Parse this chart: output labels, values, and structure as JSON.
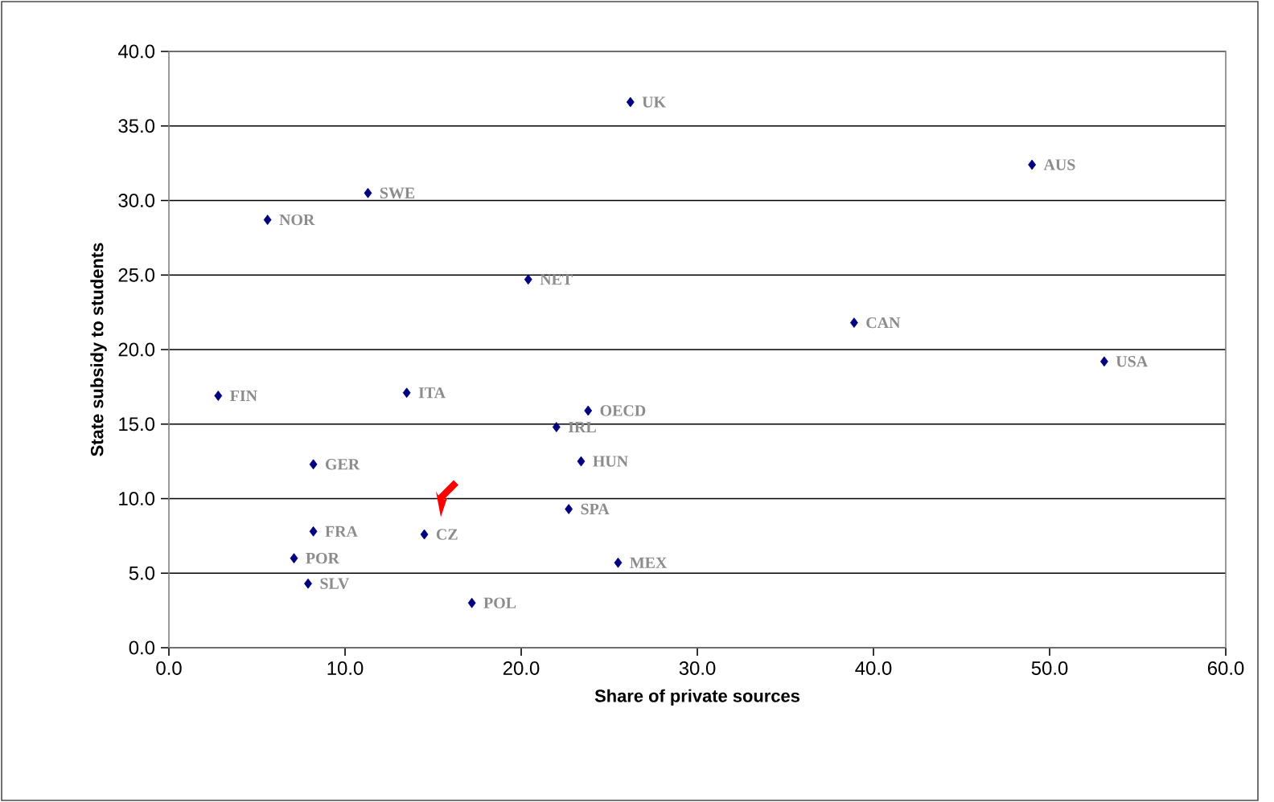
{
  "chart_data": {
    "type": "scatter",
    "xlabel": "Share of private sources",
    "ylabel": "State subsidy to students",
    "x": [
      26.2,
      49.0,
      11.3,
      5.6,
      20.4,
      38.9,
      53.1,
      2.8,
      13.5,
      23.8,
      22.0,
      23.4,
      8.2,
      22.7,
      8.2,
      14.5,
      7.1,
      25.5,
      7.9,
      17.2
    ],
    "values": [
      36.6,
      32.4,
      30.5,
      28.7,
      24.7,
      21.8,
      19.2,
      16.9,
      17.1,
      15.9,
      14.8,
      12.5,
      12.3,
      9.3,
      7.8,
      7.6,
      6.0,
      5.7,
      4.3,
      3.0
    ],
    "color": "#000080",
    "marker": "diamond",
    "grid": "y",
    "xlim": [
      0,
      60
    ],
    "ylim": [
      0,
      40
    ],
    "xticks": [
      {
        "value": 0,
        "label": "0.0"
      },
      {
        "value": 10,
        "label": "10.0"
      },
      {
        "value": 20,
        "label": "20.0"
      },
      {
        "value": 30,
        "label": "30.0"
      },
      {
        "value": 40,
        "label": "40.0"
      },
      {
        "value": 50,
        "label": "50.0"
      },
      {
        "value": 60,
        "label": "60.0"
      }
    ],
    "yticks": [
      {
        "value": 0,
        "label": "0.0"
      },
      {
        "value": 5,
        "label": "5.0"
      },
      {
        "value": 10,
        "label": "10.0"
      },
      {
        "value": 15,
        "label": "15.0"
      },
      {
        "value": 20,
        "label": "20.0"
      },
      {
        "value": 25,
        "label": "25.0"
      },
      {
        "value": 30,
        "label": "30.0"
      },
      {
        "value": 35,
        "label": "35.0"
      },
      {
        "value": 40,
        "label": "40.0"
      }
    ],
    "annotations": [
      {
        "text": "UK",
        "x": 26.2,
        "y": 36.6
      },
      {
        "text": "AUS",
        "x": 49.0,
        "y": 32.4
      },
      {
        "text": "SWE",
        "x": 11.3,
        "y": 30.5
      },
      {
        "text": "NOR",
        "x": 5.6,
        "y": 28.7
      },
      {
        "text": "NET",
        "x": 20.4,
        "y": 24.7
      },
      {
        "text": "CAN",
        "x": 38.9,
        "y": 21.8
      },
      {
        "text": "USA",
        "x": 53.1,
        "y": 19.2
      },
      {
        "text": "FIN",
        "x": 2.8,
        "y": 16.9
      },
      {
        "text": "ITA",
        "x": 13.5,
        "y": 17.1
      },
      {
        "text": "OECD",
        "x": 23.8,
        "y": 15.9
      },
      {
        "text": "IRL",
        "x": 22.0,
        "y": 14.8
      },
      {
        "text": "HUN",
        "x": 23.4,
        "y": 12.5
      },
      {
        "text": "GER",
        "x": 8.2,
        "y": 12.3
      },
      {
        "text": "SPA",
        "x": 22.7,
        "y": 9.3
      },
      {
        "text": "FRA",
        "x": 8.2,
        "y": 7.8
      },
      {
        "text": "CZ",
        "x": 14.5,
        "y": 7.6
      },
      {
        "text": "POR",
        "x": 7.1,
        "y": 6.0
      },
      {
        "text": "MEX",
        "x": 25.5,
        "y": 5.7
      },
      {
        "text": "SLV",
        "x": 7.9,
        "y": 4.3
      },
      {
        "text": "POL",
        "x": 17.2,
        "y": 3.0
      }
    ]
  }
}
